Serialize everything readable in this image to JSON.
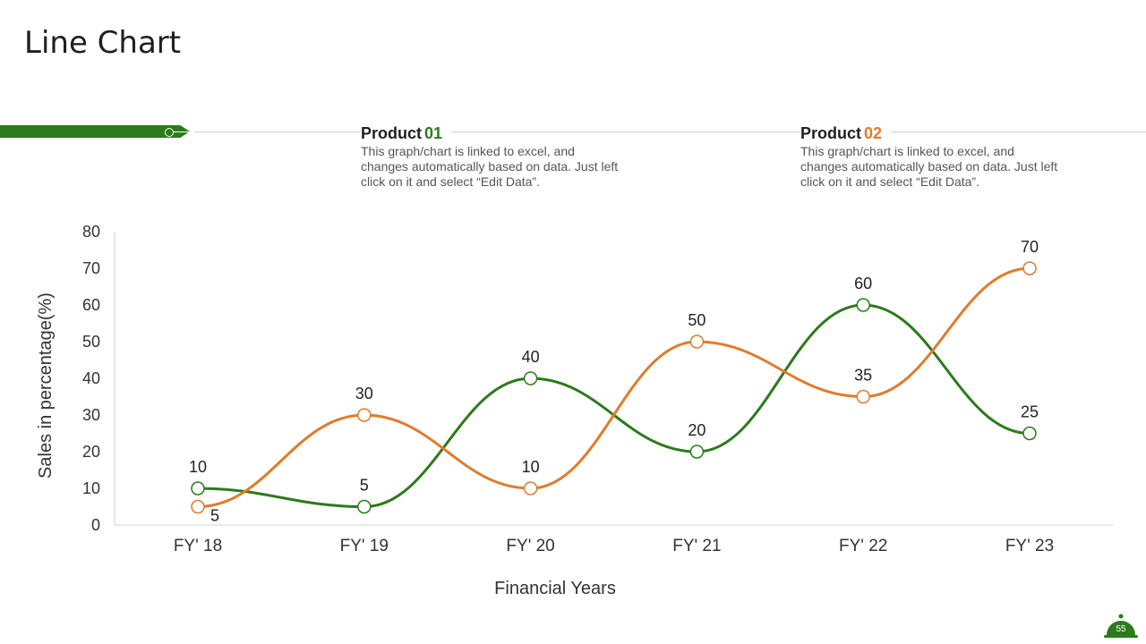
{
  "page": {
    "title": "Line Chart",
    "page_number": "55"
  },
  "products": [
    {
      "label": "Product",
      "number": "01",
      "number_color": "#2c7a1b",
      "description": "This graph/chart is linked to excel, and changes automatically based on data. Just left click on it and select “Edit Data”."
    },
    {
      "label": "Product",
      "number": "02",
      "number_color": "#e07b2c",
      "description": "This graph/chart is linked to excel, and changes automatically based on data. Just left click on it and select “Edit Data”."
    }
  ],
  "colors": {
    "green": "#2c7a1b",
    "orange": "#e07b2c",
    "axis": "#d0d0d0"
  },
  "chart_data": {
    "type": "line",
    "categories": [
      "FY' 18",
      "FY' 19",
      "FY' 20",
      "FY' 21",
      "FY' 22",
      "FY' 23"
    ],
    "series": [
      {
        "name": "Product 01",
        "color": "#2c7a1b",
        "values": [
          10,
          5,
          40,
          20,
          60,
          25
        ]
      },
      {
        "name": "Product 02",
        "color": "#e07b2c",
        "values": [
          5,
          30,
          10,
          50,
          35,
          70
        ]
      }
    ],
    "xlabel": "Financial Years",
    "ylabel": "Sales in percentage(%)",
    "ylim": [
      0,
      80
    ],
    "yticks": [
      0,
      10,
      20,
      30,
      40,
      50,
      60,
      70,
      80
    ],
    "grid": false,
    "smooth": true
  }
}
